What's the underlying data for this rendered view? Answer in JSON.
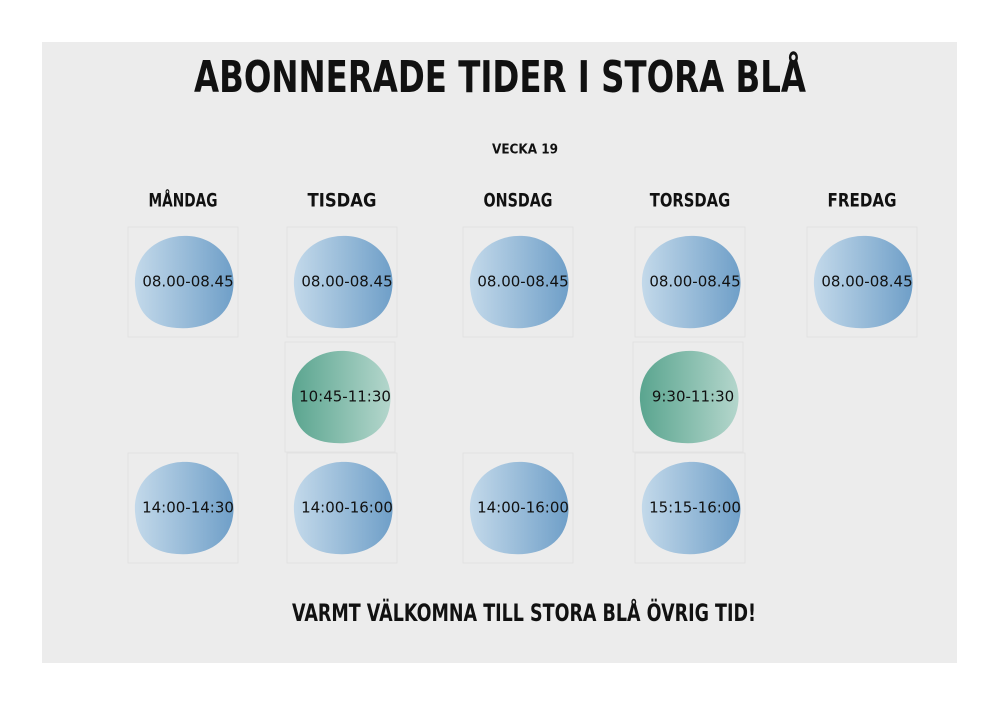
{
  "header": {
    "title": "ABONNERADE TIDER I STORA BLÅ",
    "week": "VECKA 19"
  },
  "days": [
    {
      "name": "MÅNDAG",
      "slots": [
        "08.00-08.45",
        null,
        "14:00-14:30"
      ]
    },
    {
      "name": "TISDAG",
      "slots": [
        "08.00-08.45",
        "10:45-11:30",
        "14:00-16:00"
      ]
    },
    {
      "name": "ONSDAG",
      "slots": [
        "08.00-08.45",
        null,
        "14:00-16:00"
      ]
    },
    {
      "name": "TORSDAG",
      "slots": [
        "08.00-08.45",
        "9:30-11:30",
        "15:15-16:00"
      ]
    },
    {
      "name": "FREDAG",
      "slots": [
        "08.00-08.45"
      ]
    }
  ],
  "footer": "VARMT VÄLKOMNA TILL STORA BLÅ ÖVRIG TID!"
}
